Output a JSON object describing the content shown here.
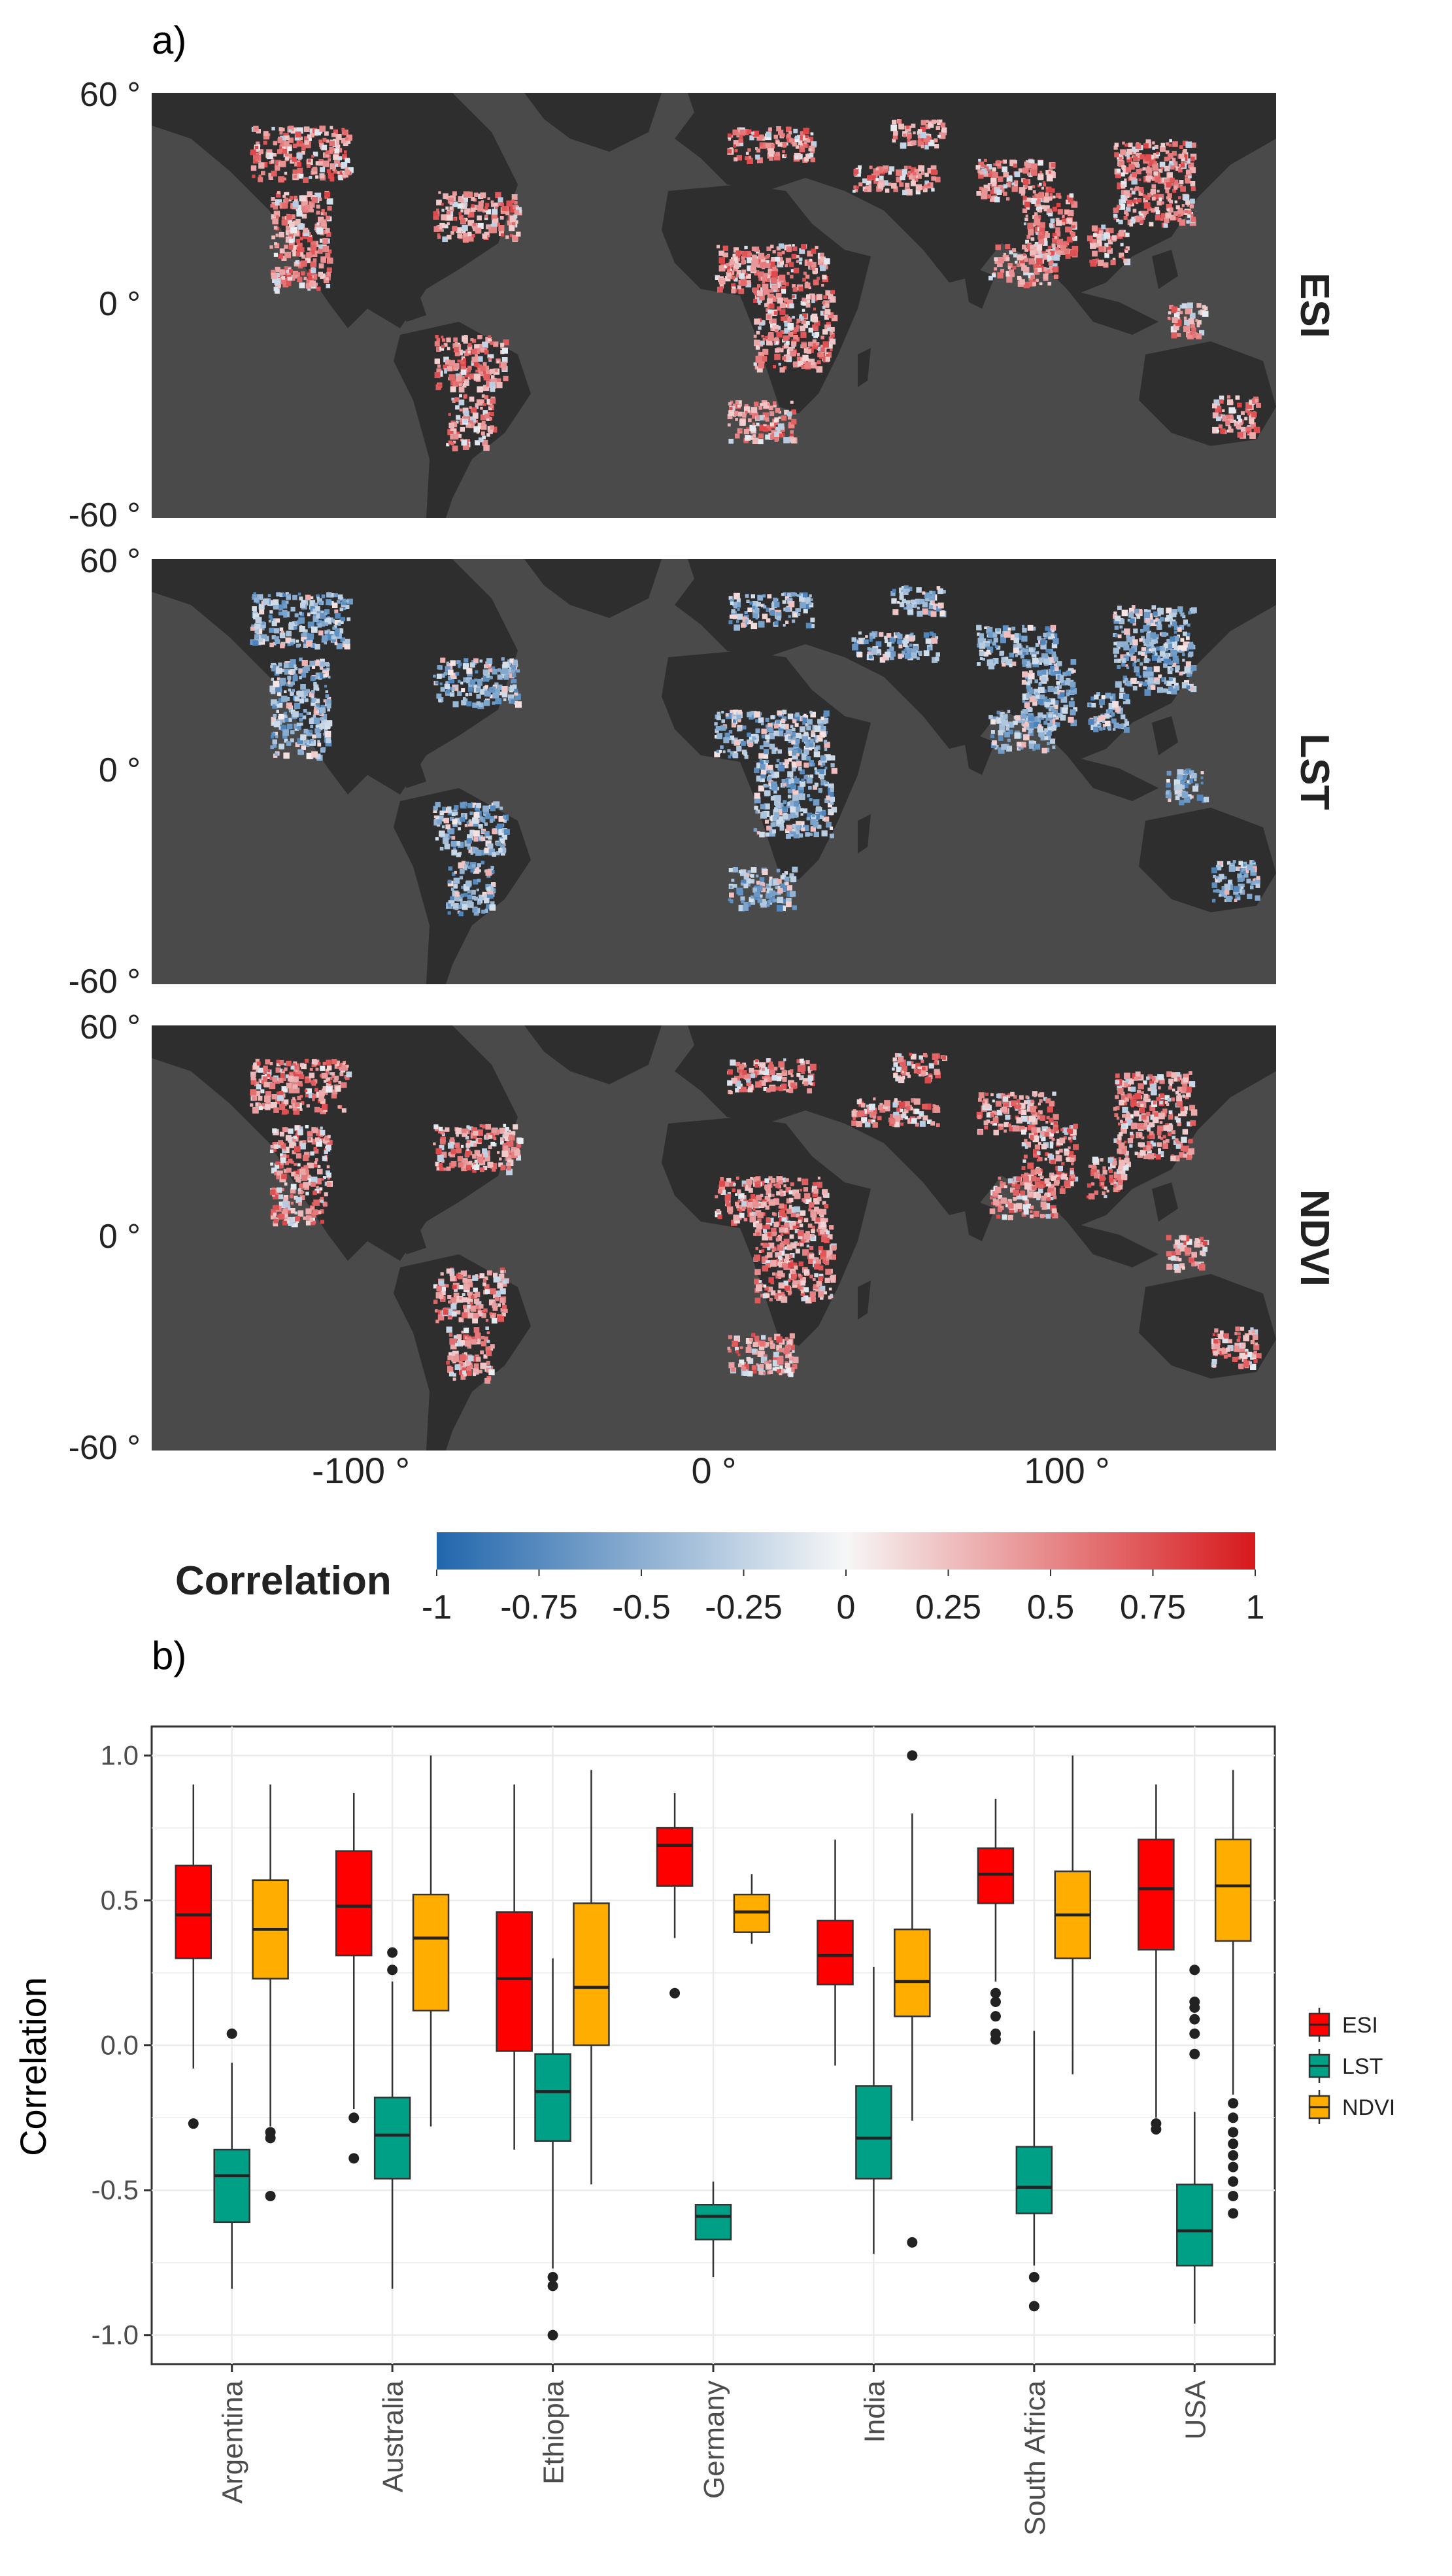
{
  "panel_a": {
    "label": "a)",
    "lat_labels": [
      "60 °",
      "0 °",
      "-60 °"
    ],
    "lon_labels": [
      "-100 °",
      "0 °",
      "100 °"
    ],
    "facets": [
      {
        "name": "ESI",
        "tone": "positive"
      },
      {
        "name": "LST",
        "tone": "negative"
      },
      {
        "name": "NDVI",
        "tone": "positive"
      }
    ],
    "colorbar": {
      "title": "Correlation",
      "ticks": [
        "-1",
        "-0.75",
        "-0.5",
        "-0.25",
        "0",
        "0.25",
        "0.5",
        "0.75",
        "1"
      ],
      "low_color": "#2166ac",
      "mid_color": "#f7f7f7",
      "high_color": "#d7191c"
    },
    "colors": {
      "ocean": "#4a4a4a",
      "land": "#2e2e2e"
    }
  },
  "panel_b": {
    "label": "b)"
  },
  "chart_data": {
    "type": "boxplot",
    "title": "",
    "xlabel": "",
    "ylabel": "Correlation",
    "ylim": [
      -1.1,
      1.1
    ],
    "yticks": [
      "1.0",
      "0.5",
      "0.0",
      "-0.5",
      "-1.0"
    ],
    "categories": [
      "Argentina",
      "Australia",
      "Ethiopia",
      "Germany",
      "India",
      "South Africa",
      "USA"
    ],
    "series": [
      {
        "name": "ESI",
        "color": "#ff0000",
        "boxes": [
          {
            "min": -0.08,
            "q1": 0.3,
            "median": 0.45,
            "q3": 0.62,
            "max": 0.9,
            "outliers": [
              -0.27
            ]
          },
          {
            "min": -0.22,
            "q1": 0.31,
            "median": 0.48,
            "q3": 0.67,
            "max": 0.87,
            "outliers": [
              -0.25,
              -0.39
            ]
          },
          {
            "min": -0.36,
            "q1": -0.02,
            "median": 0.23,
            "q3": 0.46,
            "max": 0.9,
            "outliers": []
          },
          {
            "min": 0.37,
            "q1": 0.55,
            "median": 0.69,
            "q3": 0.75,
            "max": 0.87,
            "outliers": [
              0.18
            ]
          },
          {
            "min": -0.07,
            "q1": 0.21,
            "median": 0.31,
            "q3": 0.43,
            "max": 0.71,
            "outliers": []
          },
          {
            "min": 0.22,
            "q1": 0.49,
            "median": 0.59,
            "q3": 0.68,
            "max": 0.85,
            "outliers": [
              0.18,
              0.15,
              0.1,
              0.04,
              0.02
            ]
          },
          {
            "min": -0.25,
            "q1": 0.33,
            "median": 0.54,
            "q3": 0.71,
            "max": 0.9,
            "outliers": [
              -0.27,
              -0.29
            ]
          }
        ]
      },
      {
        "name": "LST",
        "color": "#00a087",
        "boxes": [
          {
            "min": -0.84,
            "q1": -0.61,
            "median": -0.45,
            "q3": -0.36,
            "max": -0.06,
            "outliers": [
              0.04
            ]
          },
          {
            "min": -0.84,
            "q1": -0.46,
            "median": -0.31,
            "q3": -0.18,
            "max": 0.22,
            "outliers": [
              0.32,
              0.26
            ]
          },
          {
            "min": -0.77,
            "q1": -0.33,
            "median": -0.16,
            "q3": -0.03,
            "max": 0.3,
            "outliers": [
              -0.8,
              -0.83,
              -1.0
            ]
          },
          {
            "min": -0.8,
            "q1": -0.67,
            "median": -0.59,
            "q3": -0.55,
            "max": -0.47,
            "outliers": []
          },
          {
            "min": -0.72,
            "q1": -0.46,
            "median": -0.32,
            "q3": -0.14,
            "max": 0.27,
            "outliers": []
          },
          {
            "min": -0.76,
            "q1": -0.58,
            "median": -0.49,
            "q3": -0.35,
            "max": 0.05,
            "outliers": [
              -0.8,
              -0.9
            ]
          },
          {
            "min": -0.96,
            "q1": -0.76,
            "median": -0.64,
            "q3": -0.48,
            "max": -0.23,
            "outliers": [
              0.26,
              0.15,
              0.13,
              0.09,
              0.04,
              -0.03
            ]
          }
        ]
      },
      {
        "name": "NDVI",
        "color": "#ffae00",
        "boxes": [
          {
            "min": -0.28,
            "q1": 0.23,
            "median": 0.4,
            "q3": 0.57,
            "max": 0.9,
            "outliers": [
              -0.3,
              -0.32,
              -0.52
            ]
          },
          {
            "min": -0.28,
            "q1": 0.12,
            "median": 0.37,
            "q3": 0.52,
            "max": 1.0,
            "outliers": []
          },
          {
            "min": -0.48,
            "q1": 0.0,
            "median": 0.2,
            "q3": 0.49,
            "max": 0.95,
            "outliers": []
          },
          {
            "min": 0.35,
            "q1": 0.39,
            "median": 0.46,
            "q3": 0.52,
            "max": 0.59,
            "outliers": []
          },
          {
            "min": -0.26,
            "q1": 0.1,
            "median": 0.22,
            "q3": 0.4,
            "max": 0.8,
            "outliers": [
              1.0,
              -0.68
            ]
          },
          {
            "min": -0.1,
            "q1": 0.3,
            "median": 0.45,
            "q3": 0.6,
            "max": 1.0,
            "outliers": []
          },
          {
            "min": -0.17,
            "q1": 0.36,
            "median": 0.55,
            "q3": 0.71,
            "max": 0.95,
            "outliers": [
              -0.2,
              -0.25,
              -0.3,
              -0.34,
              -0.38,
              -0.42,
              -0.47,
              -0.52,
              -0.58
            ]
          }
        ]
      }
    ],
    "legend": {
      "position": "right",
      "entries": [
        "ESI",
        "LST",
        "NDVI"
      ]
    }
  }
}
